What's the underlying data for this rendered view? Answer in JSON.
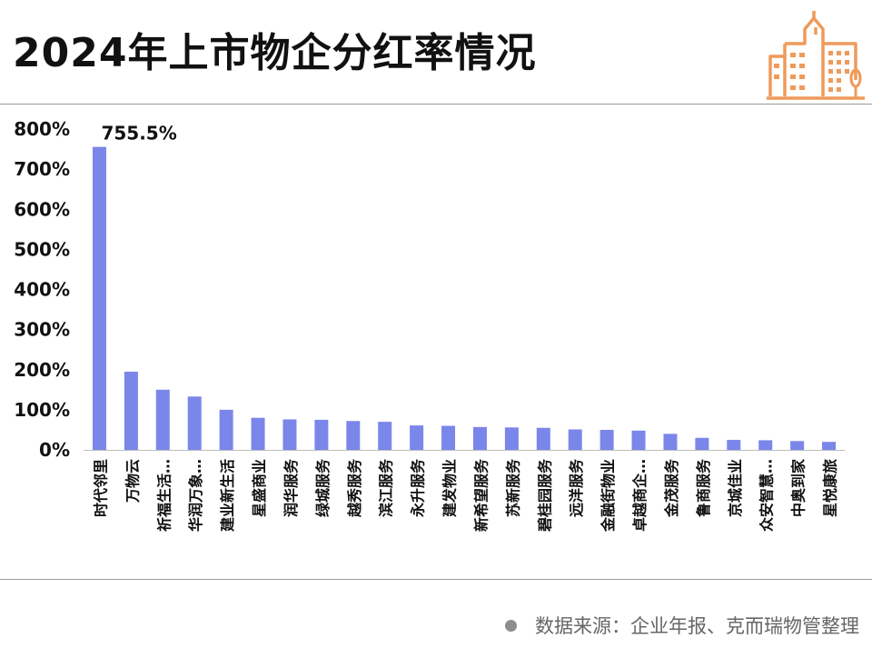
{
  "header": {
    "title": "2024年上市物企分红率情况"
  },
  "footer": {
    "source": "数据来源：企业年报、克而瑞物管整理"
  },
  "colors": {
    "bar": "#7b86ea",
    "logo": "#ef9a5a",
    "text": "#111111"
  },
  "icons": {
    "logo": "city-buildings-icon",
    "source_bullet": "bullet-dot-icon"
  },
  "chart_data": {
    "type": "bar",
    "title": "2024年上市物企分红率情况",
    "xlabel": "",
    "ylabel": "",
    "ylim": [
      0,
      800
    ],
    "yticks": [
      "0%",
      "100%",
      "200%",
      "300%",
      "400%",
      "500%",
      "600%",
      "700%",
      "800%"
    ],
    "grid": false,
    "categories": [
      "时代邻里",
      "万物云",
      "祈福生活…",
      "华润万象…",
      "建业新生活",
      "星盛商业",
      "润华服务",
      "绿城服务",
      "越秀服务",
      "滨江服务",
      "永升服务",
      "建发物业",
      "新希望服务",
      "苏新服务",
      "碧桂园服务",
      "远洋服务",
      "金融街物业",
      "卓越商企…",
      "金茂服务",
      "鲁商服务",
      "京城佳业",
      "众安智慧…",
      "中奥到家",
      "星悦康旅"
    ],
    "values": [
      755.5,
      195,
      150,
      133,
      100,
      80,
      76,
      75,
      72,
      70,
      61,
      60,
      57,
      56,
      55,
      51,
      50,
      48,
      40,
      30,
      25,
      24,
      22,
      20
    ],
    "data_labels": [
      "755.5%"
    ]
  }
}
